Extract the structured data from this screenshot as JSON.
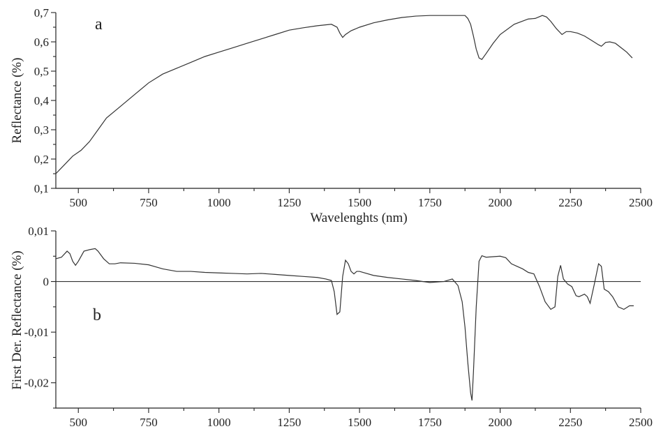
{
  "chart_data": [
    {
      "type": "line",
      "panel_label": "a",
      "xlabel": "Wavelenghts (nm)",
      "ylabel": "Reflectance (%)",
      "xlim": [
        420,
        2500
      ],
      "ylim": [
        0.1,
        0.7
      ],
      "x_ticks": [
        500,
        750,
        1000,
        1250,
        1500,
        1750,
        2000,
        2250,
        2500
      ],
      "x_tick_labels": [
        "500",
        "750",
        "1000",
        "1250",
        "1500",
        "1750",
        "2000",
        "2250",
        "2500"
      ],
      "y_ticks": [
        0.1,
        0.2,
        0.3,
        0.4,
        0.5,
        0.6,
        0.7
      ],
      "y_tick_labels": [
        "0,1",
        "0,2",
        "0,3",
        "0,4",
        "0,5",
        "0,6",
        "0,7"
      ],
      "y_minor_step": 0.05,
      "grid": false,
      "series": [
        {
          "x": [
            420,
            450,
            480,
            510,
            540,
            570,
            600,
            650,
            700,
            750,
            800,
            850,
            900,
            950,
            1000,
            1050,
            1100,
            1150,
            1200,
            1250,
            1300,
            1350,
            1400,
            1420,
            1430,
            1440,
            1450,
            1470,
            1500,
            1550,
            1600,
            1650,
            1700,
            1750,
            1800,
            1850,
            1875,
            1885,
            1895,
            1905,
            1915,
            1925,
            1935,
            1950,
            1975,
            2000,
            2050,
            2100,
            2125,
            2150,
            2165,
            2180,
            2200,
            2220,
            2235,
            2250,
            2275,
            2300,
            2325,
            2350,
            2360,
            2375,
            2390,
            2410,
            2430,
            2450,
            2470
          ],
          "y": [
            0.15,
            0.18,
            0.21,
            0.23,
            0.26,
            0.3,
            0.34,
            0.38,
            0.42,
            0.46,
            0.49,
            0.51,
            0.53,
            0.55,
            0.565,
            0.58,
            0.595,
            0.61,
            0.625,
            0.64,
            0.648,
            0.655,
            0.66,
            0.65,
            0.63,
            0.615,
            0.625,
            0.638,
            0.65,
            0.665,
            0.675,
            0.683,
            0.688,
            0.69,
            0.69,
            0.69,
            0.69,
            0.68,
            0.66,
            0.62,
            0.575,
            0.545,
            0.54,
            0.56,
            0.595,
            0.625,
            0.66,
            0.678,
            0.68,
            0.69,
            0.685,
            0.67,
            0.645,
            0.625,
            0.635,
            0.635,
            0.63,
            0.62,
            0.605,
            0.59,
            0.585,
            0.598,
            0.6,
            0.595,
            0.58,
            0.565,
            0.545
          ]
        }
      ]
    },
    {
      "type": "line",
      "panel_label": "b",
      "xlabel": "",
      "ylabel": "First Der. Reflectance (%)",
      "xlim": [
        420,
        2500
      ],
      "ylim": [
        -0.025,
        0.01
      ],
      "x_ticks": [
        500,
        750,
        1000,
        1250,
        1500,
        1750,
        2000,
        2250,
        2500
      ],
      "x_tick_labels": [
        "500",
        "750",
        "1000",
        "1250",
        "1500",
        "1750",
        "2000",
        "2250",
        "2500"
      ],
      "y_ticks": [
        0.01,
        0,
        -0.01,
        -0.02
      ],
      "y_tick_labels": [
        "0,01",
        "0",
        "-0,01",
        "-0,02"
      ],
      "y_minor_step": 0.005,
      "zero_line": true,
      "grid": false,
      "series": [
        {
          "x": [
            420,
            440,
            460,
            470,
            480,
            490,
            500,
            520,
            540,
            560,
            570,
            590,
            610,
            630,
            650,
            700,
            750,
            800,
            850,
            900,
            950,
            1000,
            1050,
            1100,
            1150,
            1200,
            1250,
            1300,
            1350,
            1380,
            1400,
            1410,
            1420,
            1430,
            1440,
            1450,
            1460,
            1470,
            1480,
            1490,
            1500,
            1550,
            1600,
            1650,
            1700,
            1750,
            1800,
            1830,
            1850,
            1865,
            1875,
            1885,
            1895,
            1900,
            1905,
            1915,
            1925,
            1935,
            1950,
            1975,
            2000,
            2020,
            2040,
            2060,
            2080,
            2100,
            2120,
            2140,
            2160,
            2180,
            2195,
            2205,
            2215,
            2225,
            2240,
            2255,
            2270,
            2280,
            2300,
            2310,
            2320,
            2335,
            2350,
            2360,
            2370,
            2385,
            2400,
            2420,
            2440,
            2460,
            2475
          ],
          "y": [
            0.0045,
            0.0048,
            0.006,
            0.0055,
            0.004,
            0.0032,
            0.004,
            0.006,
            0.0063,
            0.0065,
            0.006,
            0.0045,
            0.0035,
            0.0035,
            0.0037,
            0.0036,
            0.0033,
            0.0025,
            0.002,
            0.002,
            0.0018,
            0.0017,
            0.0016,
            0.0015,
            0.0016,
            0.0014,
            0.0012,
            0.001,
            0.0008,
            0.0005,
            0.0002,
            -0.002,
            -0.0065,
            -0.006,
            0.001,
            0.0042,
            0.0035,
            0.002,
            0.0015,
            0.002,
            0.002,
            0.0012,
            0.0008,
            0.0005,
            0.0002,
            -0.0002,
            0,
            0.0005,
            -0.0008,
            -0.004,
            -0.009,
            -0.016,
            -0.022,
            -0.0235,
            -0.018,
            -0.005,
            0.004,
            0.0051,
            0.0048,
            0.0049,
            0.005,
            0.0047,
            0.0035,
            0.003,
            0.0025,
            0.0018,
            0.0015,
            -0.001,
            -0.004,
            -0.0055,
            -0.005,
            0.001,
            0.0032,
            0.0005,
            -0.0005,
            -0.001,
            -0.0028,
            -0.003,
            -0.0025,
            -0.003,
            -0.0043,
            -0.0005,
            0.0035,
            0.003,
            -0.0015,
            -0.002,
            -0.003,
            -0.005,
            -0.0055,
            -0.0048,
            -0.0048
          ]
        }
      ]
    }
  ]
}
